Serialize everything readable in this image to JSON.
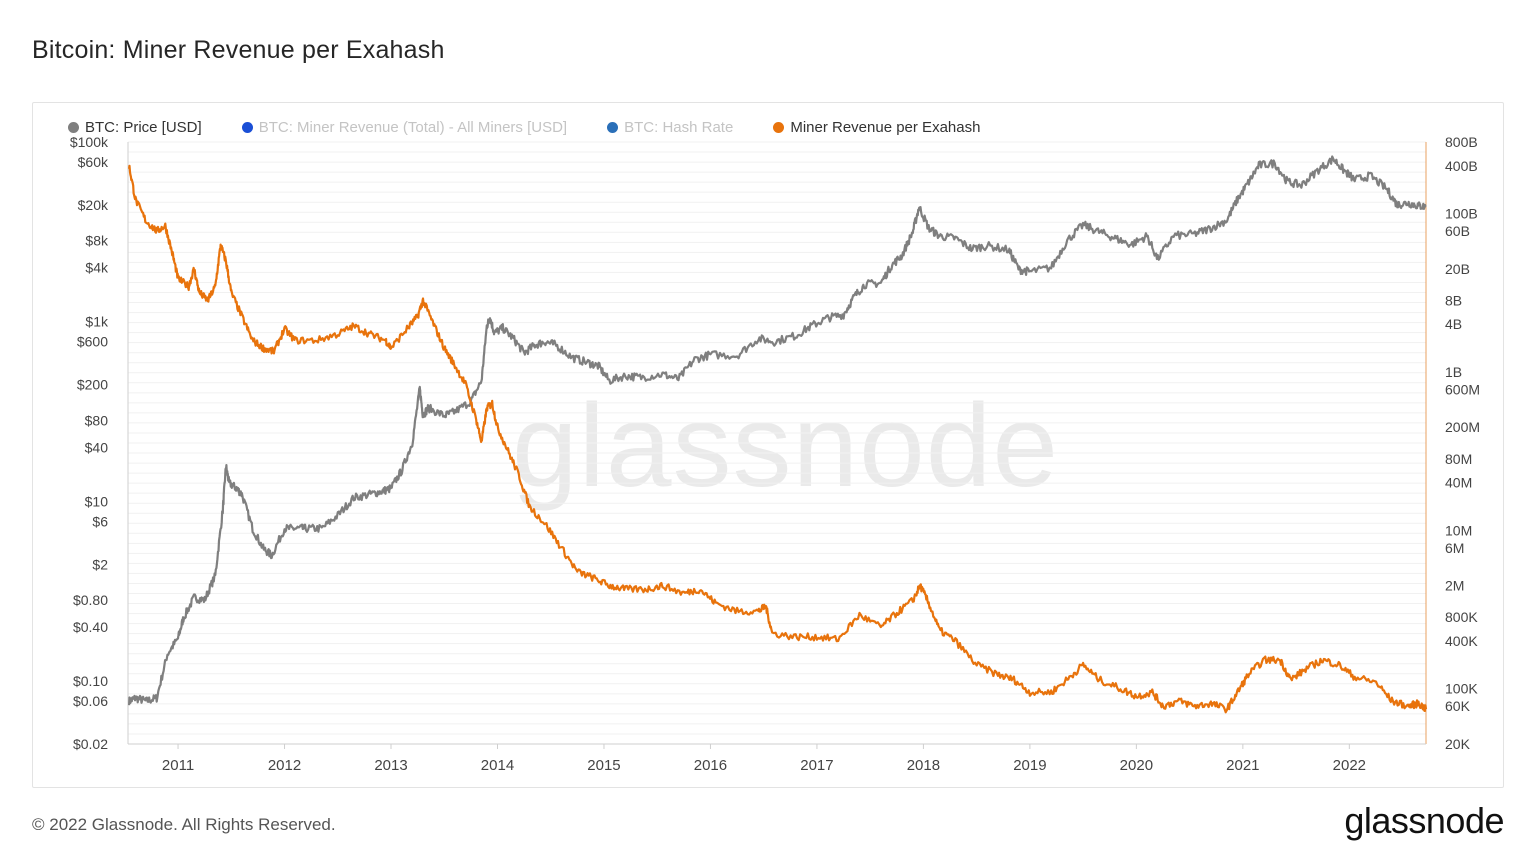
{
  "page": {
    "title": "Bitcoin: Miner Revenue per Exahash",
    "copyright": "© 2022 Glassnode. All Rights Reserved.",
    "logo": "glassnode",
    "watermark": "glassnode"
  },
  "legend": [
    {
      "label": "BTC: Price [USD]",
      "color": "#7f7f7f",
      "active": true
    },
    {
      "label": "BTC: Miner Revenue (Total) - All Miners [USD]",
      "color": "#1a4fd6",
      "active": false
    },
    {
      "label": "BTC: Hash Rate",
      "color": "#2a6fb8",
      "active": false
    },
    {
      "label": "Miner Revenue per Exahash",
      "color": "#e8730c",
      "active": true
    }
  ],
  "chart_data": {
    "type": "line",
    "title": "Bitcoin: Miner Revenue per Exahash",
    "x_ticks": [
      "2011",
      "2012",
      "2013",
      "2014",
      "2015",
      "2016",
      "2017",
      "2018",
      "2019",
      "2020",
      "2021",
      "2022"
    ],
    "x_range": [
      2010.53,
      2022.72
    ],
    "y_left": {
      "scale": "log",
      "range": [
        0.02,
        100000
      ],
      "ticks": [
        {
          "value": 100000,
          "label": "$100k"
        },
        {
          "value": 60000,
          "label": "$60k"
        },
        {
          "value": 20000,
          "label": "$20k"
        },
        {
          "value": 8000,
          "label": "$8k"
        },
        {
          "value": 4000,
          "label": "$4k"
        },
        {
          "value": 1000,
          "label": "$1k"
        },
        {
          "value": 600,
          "label": "$600"
        },
        {
          "value": 200,
          "label": "$200"
        },
        {
          "value": 80,
          "label": "$80"
        },
        {
          "value": 40,
          "label": "$40"
        },
        {
          "value": 10,
          "label": "$10"
        },
        {
          "value": 6,
          "label": "$6"
        },
        {
          "value": 2,
          "label": "$2"
        },
        {
          "value": 0.8,
          "label": "$0.80"
        },
        {
          "value": 0.4,
          "label": "$0.40"
        },
        {
          "value": 0.1,
          "label": "$0.10"
        },
        {
          "value": 0.06,
          "label": "$0.06"
        },
        {
          "value": 0.02,
          "label": "$0.02"
        }
      ]
    },
    "y_right": {
      "scale": "log",
      "range": [
        20000,
        800000000000
      ],
      "ticks": [
        {
          "value": 800000000000,
          "label": "800B"
        },
        {
          "value": 400000000000,
          "label": "400B"
        },
        {
          "value": 100000000000,
          "label": "100B"
        },
        {
          "value": 60000000000,
          "label": "60B"
        },
        {
          "value": 20000000000,
          "label": "20B"
        },
        {
          "value": 8000000000,
          "label": "8B"
        },
        {
          "value": 4000000000,
          "label": "4B"
        },
        {
          "value": 1000000000,
          "label": "1B"
        },
        {
          "value": 600000000,
          "label": "600M"
        },
        {
          "value": 200000000,
          "label": "200M"
        },
        {
          "value": 80000000,
          "label": "80M"
        },
        {
          "value": 40000000,
          "label": "40M"
        },
        {
          "value": 10000000,
          "label": "10M"
        },
        {
          "value": 6000000,
          "label": "6M"
        },
        {
          "value": 2000000,
          "label": "2M"
        },
        {
          "value": 800000,
          "label": "800K"
        },
        {
          "value": 400000,
          "label": "400K"
        },
        {
          "value": 100000,
          "label": "100K"
        },
        {
          "value": 60000,
          "label": "60K"
        },
        {
          "value": 20000,
          "label": "20K"
        }
      ]
    },
    "grid": true,
    "legend_position": "top-left",
    "series": [
      {
        "name": "BTC: Price [USD]",
        "axis": "left",
        "color": "#7f7f7f",
        "points": [
          [
            2010.54,
            0.06
          ],
          [
            2010.6,
            0.065
          ],
          [
            2010.7,
            0.06
          ],
          [
            2010.8,
            0.065
          ],
          [
            2010.9,
            0.2
          ],
          [
            2011.0,
            0.3
          ],
          [
            2011.05,
            0.5
          ],
          [
            2011.15,
            0.85
          ],
          [
            2011.25,
            0.8
          ],
          [
            2011.35,
            1.5
          ],
          [
            2011.42,
            8
          ],
          [
            2011.45,
            25
          ],
          [
            2011.48,
            16
          ],
          [
            2011.55,
            14
          ],
          [
            2011.6,
            12
          ],
          [
            2011.7,
            5
          ],
          [
            2011.8,
            3
          ],
          [
            2011.88,
            2.5
          ],
          [
            2012.0,
            5
          ],
          [
            2012.1,
            5
          ],
          [
            2012.2,
            5
          ],
          [
            2012.35,
            5
          ],
          [
            2012.5,
            7
          ],
          [
            2012.65,
            11
          ],
          [
            2012.8,
            12
          ],
          [
            2012.92,
            13
          ],
          [
            2013.0,
            14
          ],
          [
            2013.1,
            22
          ],
          [
            2013.2,
            45
          ],
          [
            2013.27,
            180
          ],
          [
            2013.3,
            90
          ],
          [
            2013.35,
            110
          ],
          [
            2013.5,
            90
          ],
          [
            2013.6,
            100
          ],
          [
            2013.75,
            130
          ],
          [
            2013.85,
            220
          ],
          [
            2013.9,
            900
          ],
          [
            2013.93,
            1100
          ],
          [
            2013.97,
            750
          ],
          [
            2014.05,
            850
          ],
          [
            2014.15,
            650
          ],
          [
            2014.25,
            450
          ],
          [
            2014.35,
            550
          ],
          [
            2014.45,
            600
          ],
          [
            2014.55,
            550
          ],
          [
            2014.7,
            400
          ],
          [
            2014.85,
            350
          ],
          [
            2014.95,
            320
          ],
          [
            2015.05,
            220
          ],
          [
            2015.2,
            250
          ],
          [
            2015.35,
            240
          ],
          [
            2015.55,
            260
          ],
          [
            2015.7,
            230
          ],
          [
            2015.85,
            380
          ],
          [
            2016.0,
            430
          ],
          [
            2016.25,
            420
          ],
          [
            2016.45,
            650
          ],
          [
            2016.6,
            600
          ],
          [
            2016.8,
            700
          ],
          [
            2016.95,
            900
          ],
          [
            2017.1,
            1100
          ],
          [
            2017.25,
            1200
          ],
          [
            2017.35,
            1900
          ],
          [
            2017.45,
            2600
          ],
          [
            2017.6,
            2700
          ],
          [
            2017.7,
            4200
          ],
          [
            2017.8,
            5500
          ],
          [
            2017.9,
            10000
          ],
          [
            2017.96,
            19000
          ],
          [
            2018.05,
            11000
          ],
          [
            2018.15,
            9000
          ],
          [
            2018.3,
            8500
          ],
          [
            2018.45,
            6500
          ],
          [
            2018.6,
            7000
          ],
          [
            2018.8,
            6300
          ],
          [
            2018.9,
            3800
          ],
          [
            2019.0,
            3600
          ],
          [
            2019.2,
            4000
          ],
          [
            2019.35,
            8000
          ],
          [
            2019.5,
            12000
          ],
          [
            2019.65,
            10000
          ],
          [
            2019.8,
            8500
          ],
          [
            2019.95,
            7200
          ],
          [
            2020.1,
            9000
          ],
          [
            2020.2,
            5000
          ],
          [
            2020.35,
            9000
          ],
          [
            2020.55,
            9500
          ],
          [
            2020.7,
            11000
          ],
          [
            2020.85,
            13500
          ],
          [
            2020.95,
            23000
          ],
          [
            2021.05,
            35000
          ],
          [
            2021.15,
            55000
          ],
          [
            2021.3,
            58000
          ],
          [
            2021.42,
            36000
          ],
          [
            2021.55,
            33000
          ],
          [
            2021.7,
            48000
          ],
          [
            2021.85,
            65000
          ],
          [
            2021.95,
            48000
          ],
          [
            2022.05,
            38000
          ],
          [
            2022.2,
            42000
          ],
          [
            2022.35,
            30000
          ],
          [
            2022.45,
            20000
          ],
          [
            2022.55,
            21000
          ],
          [
            2022.65,
            19500
          ],
          [
            2022.72,
            19000
          ]
        ]
      },
      {
        "name": "Miner Revenue per Exahash",
        "axis": "right",
        "color": "#e8730c",
        "points": [
          [
            2010.54,
            400000000000
          ],
          [
            2010.6,
            150000000000
          ],
          [
            2010.7,
            80000000000
          ],
          [
            2010.8,
            60000000000
          ],
          [
            2010.88,
            70000000000
          ],
          [
            2010.95,
            30000000000
          ],
          [
            2011.0,
            15000000000
          ],
          [
            2011.1,
            12000000000
          ],
          [
            2011.15,
            20000000000
          ],
          [
            2011.2,
            10000000000
          ],
          [
            2011.28,
            8000000000
          ],
          [
            2011.35,
            12000000000
          ],
          [
            2011.4,
            40000000000
          ],
          [
            2011.45,
            25000000000
          ],
          [
            2011.5,
            10000000000
          ],
          [
            2011.6,
            5000000000
          ],
          [
            2011.7,
            2500000000
          ],
          [
            2011.8,
            2000000000
          ],
          [
            2011.9,
            1800000000
          ],
          [
            2012.0,
            3500000000
          ],
          [
            2012.1,
            2500000000
          ],
          [
            2012.3,
            2500000000
          ],
          [
            2012.5,
            3000000000
          ],
          [
            2012.65,
            3800000000
          ],
          [
            2012.8,
            3000000000
          ],
          [
            2012.95,
            2500000000
          ],
          [
            2013.0,
            2000000000
          ],
          [
            2013.15,
            3500000000
          ],
          [
            2013.25,
            5000000000
          ],
          [
            2013.3,
            8000000000
          ],
          [
            2013.4,
            4000000000
          ],
          [
            2013.5,
            2000000000
          ],
          [
            2013.6,
            1200000000
          ],
          [
            2013.7,
            700000000
          ],
          [
            2013.8,
            250000000
          ],
          [
            2013.85,
            130000000
          ],
          [
            2013.9,
            350000000
          ],
          [
            2013.95,
            400000000
          ],
          [
            2014.0,
            200000000
          ],
          [
            2014.1,
            100000000
          ],
          [
            2014.2,
            50000000
          ],
          [
            2014.3,
            20000000
          ],
          [
            2014.45,
            12000000
          ],
          [
            2014.6,
            6000000
          ],
          [
            2014.75,
            3000000
          ],
          [
            2014.9,
            2500000
          ],
          [
            2015.05,
            2000000
          ],
          [
            2015.2,
            1800000
          ],
          [
            2015.4,
            1800000
          ],
          [
            2015.55,
            2000000
          ],
          [
            2015.75,
            1600000
          ],
          [
            2015.9,
            1800000
          ],
          [
            2016.05,
            1200000
          ],
          [
            2016.25,
            950000
          ],
          [
            2016.45,
            950000
          ],
          [
            2016.52,
            1100000
          ],
          [
            2016.58,
            500000
          ],
          [
            2016.8,
            450000
          ],
          [
            2017.0,
            450000
          ],
          [
            2017.2,
            420000
          ],
          [
            2017.4,
            850000
          ],
          [
            2017.6,
            600000
          ],
          [
            2017.75,
            900000
          ],
          [
            2017.9,
            1300000
          ],
          [
            2017.97,
            2000000
          ],
          [
            2018.05,
            1200000
          ],
          [
            2018.15,
            550000
          ],
          [
            2018.3,
            400000
          ],
          [
            2018.5,
            200000
          ],
          [
            2018.7,
            150000
          ],
          [
            2018.85,
            130000
          ],
          [
            2019.0,
            90000
          ],
          [
            2019.2,
            90000
          ],
          [
            2019.35,
            130000
          ],
          [
            2019.5,
            200000
          ],
          [
            2019.65,
            130000
          ],
          [
            2019.85,
            100000
          ],
          [
            2020.0,
            80000
          ],
          [
            2020.15,
            90000
          ],
          [
            2020.25,
            60000
          ],
          [
            2020.4,
            70000
          ],
          [
            2020.55,
            60000
          ],
          [
            2020.7,
            65000
          ],
          [
            2020.85,
            55000
          ],
          [
            2020.95,
            90000
          ],
          [
            2021.05,
            150000
          ],
          [
            2021.2,
            230000
          ],
          [
            2021.35,
            230000
          ],
          [
            2021.45,
            130000
          ],
          [
            2021.6,
            180000
          ],
          [
            2021.75,
            230000
          ],
          [
            2021.9,
            200000
          ],
          [
            2022.05,
            140000
          ],
          [
            2022.25,
            120000
          ],
          [
            2022.4,
            70000
          ],
          [
            2022.55,
            60000
          ],
          [
            2022.65,
            65000
          ],
          [
            2022.72,
            55000
          ]
        ]
      }
    ]
  }
}
